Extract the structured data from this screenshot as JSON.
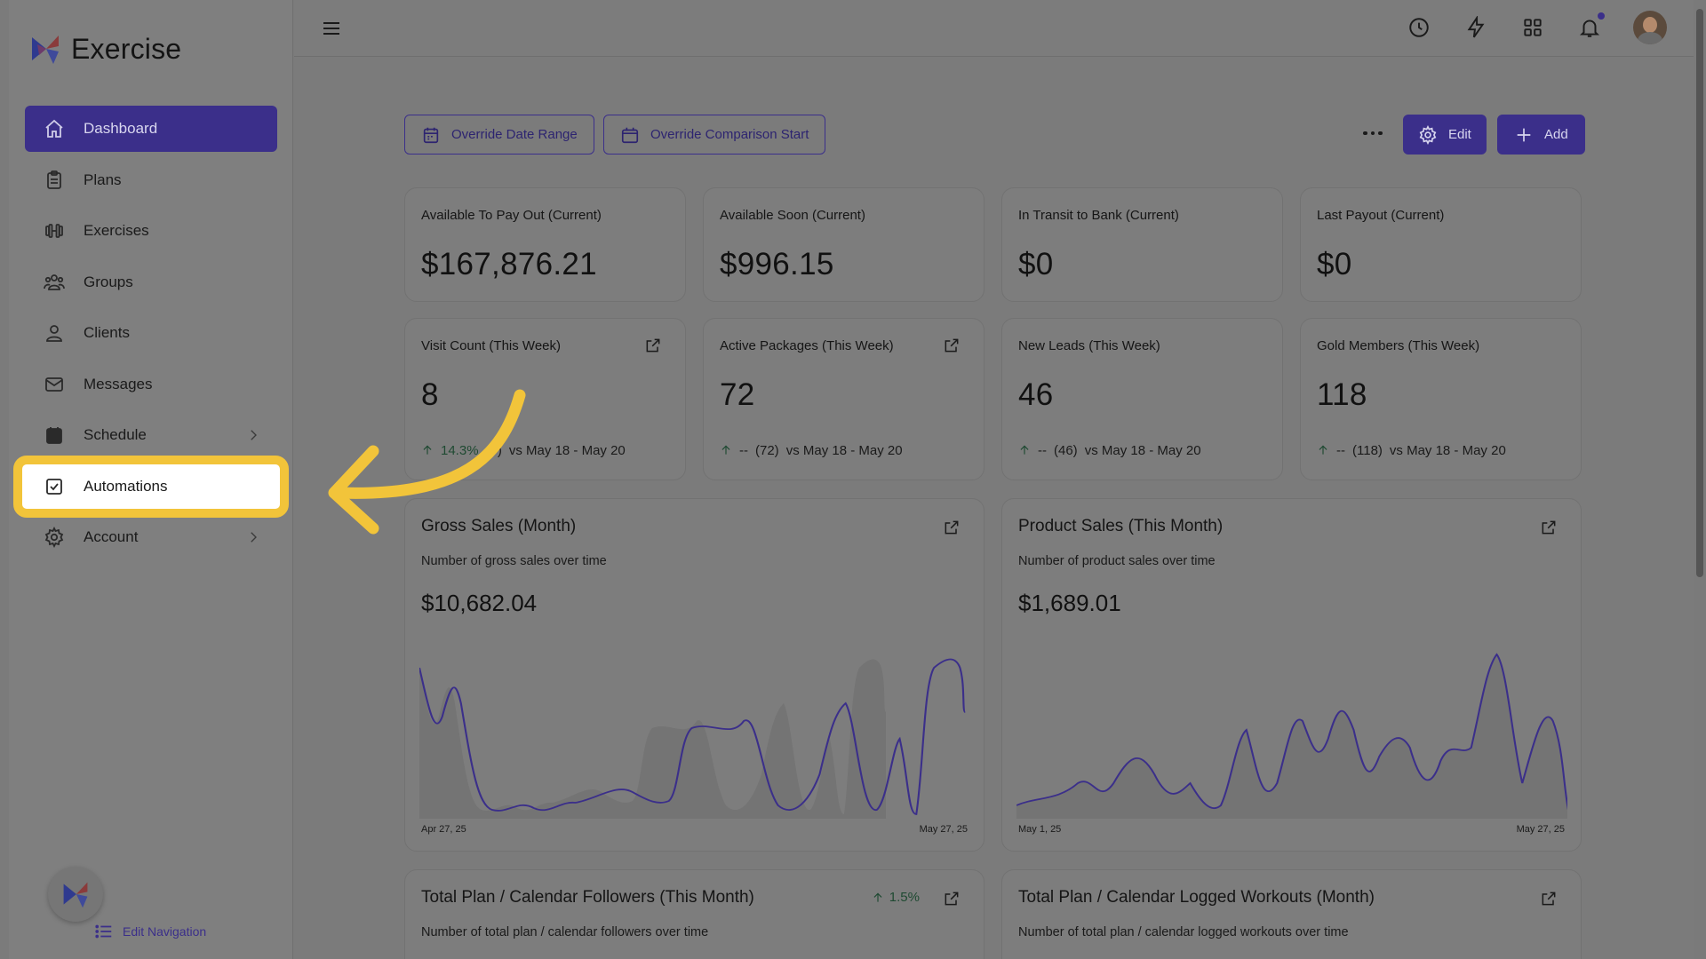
{
  "app": {
    "name": "Exercise"
  },
  "sidebar": {
    "items": [
      {
        "label": "Dashboard",
        "icon": "home-icon",
        "active": true
      },
      {
        "label": "Plans",
        "icon": "clipboard-icon"
      },
      {
        "label": "Exercises",
        "icon": "dumbbell-icon"
      },
      {
        "label": "Groups",
        "icon": "group-icon"
      },
      {
        "label": "Clients",
        "icon": "user-icon"
      },
      {
        "label": "Messages",
        "icon": "mail-icon"
      },
      {
        "label": "Schedule",
        "icon": "calendar-icon",
        "has_submenu": true
      },
      {
        "label": "Automations",
        "icon": "checkbox-icon",
        "highlighted": true
      },
      {
        "label": "Account",
        "icon": "gear-icon",
        "has_submenu": true
      }
    ],
    "edit_navigation": "Edit Navigation"
  },
  "toolbar": {
    "override_date_range": "Override Date Range",
    "override_comparison_start": "Override Comparison Start",
    "edit": "Edit",
    "add": "Add"
  },
  "stats_row1": [
    {
      "label": "Available To Pay Out (Current)",
      "value": "$167,876.21"
    },
    {
      "label": "Available Soon (Current)",
      "value": "$996.15"
    },
    {
      "label": "In Transit to Bank (Current)",
      "value": "$0"
    },
    {
      "label": "Last Payout (Current)",
      "value": "$0"
    }
  ],
  "stats_row2": [
    {
      "label": "Visit Count (This Week)",
      "value": "8",
      "change": "14.3%",
      "prev": "(7)",
      "range": "vs May 18 - May 20"
    },
    {
      "label": "Active Packages (This Week)",
      "value": "72",
      "change": "--",
      "prev": "(72)",
      "range": "vs May 18 - May 20"
    },
    {
      "label": "New Leads (This Week)",
      "value": "46",
      "change": "--",
      "prev": "(46)",
      "range": "vs May 18 - May 20"
    },
    {
      "label": "Gold Members (This Week)",
      "value": "118",
      "change": "--",
      "prev": "(118)",
      "range": "vs May 18 - May 20"
    }
  ],
  "gross_sales": {
    "title": "Gross Sales (Month)",
    "subtitle": "Number of gross sales over time",
    "value": "$10,682.04",
    "x_start": "Apr 27, 25",
    "x_end": "May 27, 25"
  },
  "product_sales": {
    "title": "Product Sales (This Month)",
    "subtitle": "Number of product sales over time",
    "value": "$1,689.01",
    "x_start": "May 1, 25",
    "x_end": "May 27, 25"
  },
  "followers": {
    "title": "Total Plan / Calendar Followers (This Month)",
    "subtitle": "Number of total plan / calendar followers over time",
    "change": "1.5%"
  },
  "logged_workouts": {
    "title": "Total Plan / Calendar Logged Workouts (Month)",
    "subtitle": "Number of total plan / calendar logged workouts over time"
  },
  "colors": {
    "accent": "#3b2f8a",
    "highlight": "#f2c43a",
    "overlay_bg": "#7b7b7b"
  }
}
